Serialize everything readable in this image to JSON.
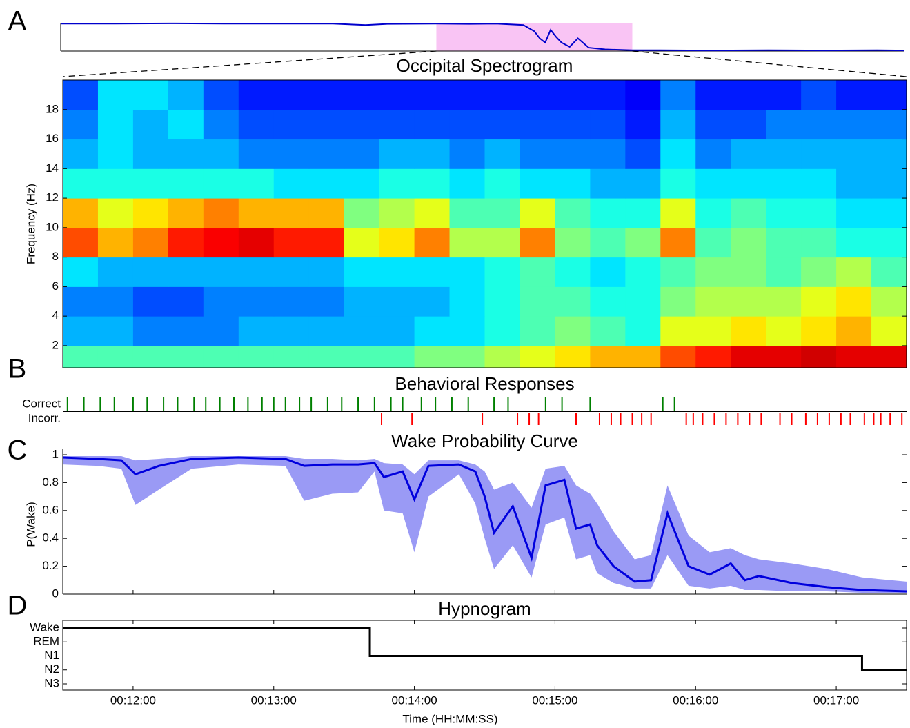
{
  "chart_data": [
    {
      "type": "overview",
      "panel_label": "A",
      "xlim": [
        0,
        1550
      ],
      "ylim": [
        0,
        1
      ],
      "x": [
        0,
        100,
        200,
        300,
        400,
        500,
        560,
        600,
        690,
        750,
        800,
        850,
        870,
        880,
        890,
        900,
        910,
        920,
        935,
        950,
        970,
        1000,
        1050,
        1100,
        1200,
        1300,
        1400,
        1500,
        1550
      ],
      "values": [
        0.97,
        0.97,
        0.98,
        0.97,
        0.97,
        0.97,
        0.92,
        0.96,
        0.97,
        0.96,
        0.97,
        0.92,
        0.7,
        0.45,
        0.3,
        0.75,
        0.5,
        0.3,
        0.15,
        0.45,
        0.12,
        0.06,
        0.03,
        0.03,
        0.02,
        0.03,
        0.02,
        0.03,
        0.02
      ],
      "color": "#0000cc",
      "highlight": [
        690,
        1050
      ],
      "highlight_color": "#f9c4f4"
    },
    {
      "type": "heatmap",
      "title": "Occipital Spectrogram",
      "ylabel": "Frequency (Hz)",
      "xlim": [
        690,
        1050
      ],
      "ylim": [
        0.5,
        20
      ],
      "yticks": [
        2,
        4,
        6,
        8,
        10,
        12,
        14,
        16,
        18
      ],
      "x_edges": [
        690,
        705,
        720,
        735,
        750,
        765,
        780,
        795,
        810,
        825,
        840,
        855,
        870,
        885,
        900,
        915,
        930,
        945,
        960,
        975,
        990,
        1005,
        1020,
        1035,
        1050
      ],
      "y_edges": [
        0.5,
        2,
        4,
        6,
        8,
        10,
        12,
        14,
        16,
        18,
        20
      ],
      "z": [
        [
          0.45,
          0.45,
          0.45,
          0.45,
          0.45,
          0.45,
          0.45,
          0.45,
          0.45,
          0.45,
          0.5,
          0.5,
          0.55,
          0.6,
          0.65,
          0.7,
          0.7,
          0.8,
          0.85,
          0.9,
          0.9,
          0.92,
          0.9,
          0.9
        ],
        [
          0.3,
          0.3,
          0.25,
          0.25,
          0.25,
          0.3,
          0.3,
          0.3,
          0.3,
          0.3,
          0.35,
          0.35,
          0.4,
          0.45,
          0.5,
          0.45,
          0.4,
          0.6,
          0.6,
          0.65,
          0.6,
          0.65,
          0.7,
          0.6
        ],
        [
          0.25,
          0.25,
          0.2,
          0.2,
          0.25,
          0.25,
          0.25,
          0.25,
          0.3,
          0.3,
          0.3,
          0.35,
          0.4,
          0.45,
          0.45,
          0.4,
          0.4,
          0.5,
          0.55,
          0.55,
          0.55,
          0.6,
          0.65,
          0.55
        ],
        [
          0.35,
          0.3,
          0.3,
          0.3,
          0.3,
          0.3,
          0.3,
          0.3,
          0.35,
          0.35,
          0.35,
          0.35,
          0.4,
          0.45,
          0.4,
          0.35,
          0.4,
          0.45,
          0.5,
          0.5,
          0.45,
          0.5,
          0.55,
          0.45
        ],
        [
          0.8,
          0.7,
          0.75,
          0.85,
          0.88,
          0.9,
          0.85,
          0.85,
          0.6,
          0.65,
          0.75,
          0.55,
          0.55,
          0.75,
          0.5,
          0.45,
          0.5,
          0.75,
          0.45,
          0.5,
          0.45,
          0.45,
          0.4,
          0.4
        ],
        [
          0.7,
          0.6,
          0.65,
          0.7,
          0.75,
          0.7,
          0.7,
          0.7,
          0.5,
          0.55,
          0.6,
          0.45,
          0.45,
          0.6,
          0.45,
          0.4,
          0.4,
          0.6,
          0.4,
          0.45,
          0.4,
          0.4,
          0.35,
          0.35
        ],
        [
          0.4,
          0.4,
          0.4,
          0.4,
          0.4,
          0.4,
          0.35,
          0.35,
          0.35,
          0.4,
          0.4,
          0.35,
          0.4,
          0.35,
          0.35,
          0.3,
          0.3,
          0.4,
          0.35,
          0.35,
          0.35,
          0.35,
          0.3,
          0.3
        ],
        [
          0.3,
          0.35,
          0.3,
          0.3,
          0.3,
          0.25,
          0.25,
          0.25,
          0.25,
          0.3,
          0.3,
          0.25,
          0.3,
          0.25,
          0.25,
          0.25,
          0.2,
          0.35,
          0.25,
          0.3,
          0.3,
          0.3,
          0.3,
          0.3
        ],
        [
          0.25,
          0.35,
          0.3,
          0.35,
          0.25,
          0.2,
          0.2,
          0.2,
          0.2,
          0.2,
          0.2,
          0.2,
          0.2,
          0.2,
          0.2,
          0.2,
          0.15,
          0.3,
          0.2,
          0.2,
          0.25,
          0.25,
          0.25,
          0.25
        ],
        [
          0.2,
          0.35,
          0.35,
          0.3,
          0.2,
          0.15,
          0.15,
          0.15,
          0.15,
          0.15,
          0.15,
          0.15,
          0.15,
          0.15,
          0.15,
          0.15,
          0.12,
          0.25,
          0.15,
          0.15,
          0.15,
          0.2,
          0.15,
          0.15
        ]
      ]
    },
    {
      "type": "events",
      "panel_label": "B",
      "title": "Behavioral Responses",
      "xlim": [
        690,
        1050
      ],
      "series": [
        {
          "name": "Correct",
          "color": "#008000",
          "times": [
            692,
            699,
            706,
            712,
            720,
            726,
            733,
            739,
            746,
            751,
            757,
            763,
            769,
            775,
            780,
            785,
            791,
            796,
            803,
            809,
            816,
            823,
            830,
            835,
            843,
            849,
            856,
            863,
            874,
            880,
            896,
            903,
            915,
            946,
            951
          ]
        },
        {
          "name": "Incorr.",
          "color": "#ff0000",
          "times": [
            826,
            839,
            869,
            884,
            889,
            893,
            909,
            919,
            924,
            928,
            933,
            937,
            941,
            956,
            959,
            963,
            968,
            973,
            978,
            983,
            988,
            996,
            1001,
            1007,
            1012,
            1017,
            1022,
            1026,
            1032,
            1036,
            1039,
            1043,
            1048
          ]
        }
      ]
    },
    {
      "type": "band_line",
      "panel_label": "C",
      "title": "Wake Probability Curve",
      "ylabel": "P(Wake)",
      "xlim": [
        690,
        1050
      ],
      "ylim": [
        0,
        1
      ],
      "yticks": [
        0,
        0.2,
        0.4,
        0.6,
        0.8,
        1
      ],
      "x": [
        690,
        705,
        715,
        721,
        731,
        745,
        765,
        785,
        793,
        805,
        816,
        823,
        827,
        835,
        840,
        846,
        859,
        866,
        870,
        874,
        882,
        890,
        896,
        904,
        909,
        915,
        918,
        925,
        934,
        941,
        948,
        957,
        966,
        975,
        981,
        987,
        1001,
        1016,
        1031,
        1050
      ],
      "values": [
        0.98,
        0.97,
        0.96,
        0.86,
        0.92,
        0.97,
        0.98,
        0.97,
        0.92,
        0.93,
        0.93,
        0.94,
        0.84,
        0.88,
        0.68,
        0.92,
        0.93,
        0.88,
        0.7,
        0.44,
        0.63,
        0.26,
        0.78,
        0.82,
        0.47,
        0.5,
        0.35,
        0.2,
        0.09,
        0.1,
        0.58,
        0.2,
        0.14,
        0.22,
        0.1,
        0.13,
        0.08,
        0.05,
        0.03,
        0.02
      ],
      "lower": [
        0.93,
        0.92,
        0.9,
        0.64,
        0.75,
        0.9,
        0.93,
        0.92,
        0.67,
        0.72,
        0.73,
        0.88,
        0.6,
        0.58,
        0.3,
        0.7,
        0.86,
        0.65,
        0.4,
        0.18,
        0.35,
        0.12,
        0.5,
        0.55,
        0.25,
        0.28,
        0.15,
        0.08,
        0.04,
        0.04,
        0.28,
        0.06,
        0.04,
        0.06,
        0.03,
        0.03,
        0.02,
        0.02,
        0.01,
        0.01
      ],
      "upper": [
        0.99,
        0.99,
        0.99,
        0.96,
        0.97,
        0.99,
        0.99,
        0.99,
        0.97,
        0.97,
        0.96,
        0.97,
        0.94,
        0.93,
        0.86,
        0.96,
        0.96,
        0.93,
        0.88,
        0.75,
        0.8,
        0.62,
        0.9,
        0.92,
        0.78,
        0.72,
        0.65,
        0.45,
        0.25,
        0.28,
        0.78,
        0.42,
        0.3,
        0.33,
        0.28,
        0.25,
        0.22,
        0.18,
        0.12,
        0.09
      ],
      "color": "#0000dd",
      "band_color": "#9a9af5"
    },
    {
      "type": "step",
      "panel_label": "D",
      "title": "Hypnogram",
      "xlabel": "Time (HH:MM:SS)",
      "xlim": [
        690,
        1050
      ],
      "categories": [
        "Wake",
        "REM",
        "N1",
        "N2",
        "N3"
      ],
      "xticks": [
        {
          "value": 720,
          "label": "00:12:00"
        },
        {
          "value": 780,
          "label": "00:13:00"
        },
        {
          "value": 840,
          "label": "00:14:00"
        },
        {
          "value": 900,
          "label": "00:15:00"
        },
        {
          "value": 960,
          "label": "00:16:00"
        },
        {
          "value": 1020,
          "label": "00:17:00"
        }
      ],
      "x": [
        690,
        821,
        1031
      ],
      "stages": [
        "Wake",
        "N1",
        "N2"
      ],
      "color": "#000000"
    }
  ]
}
